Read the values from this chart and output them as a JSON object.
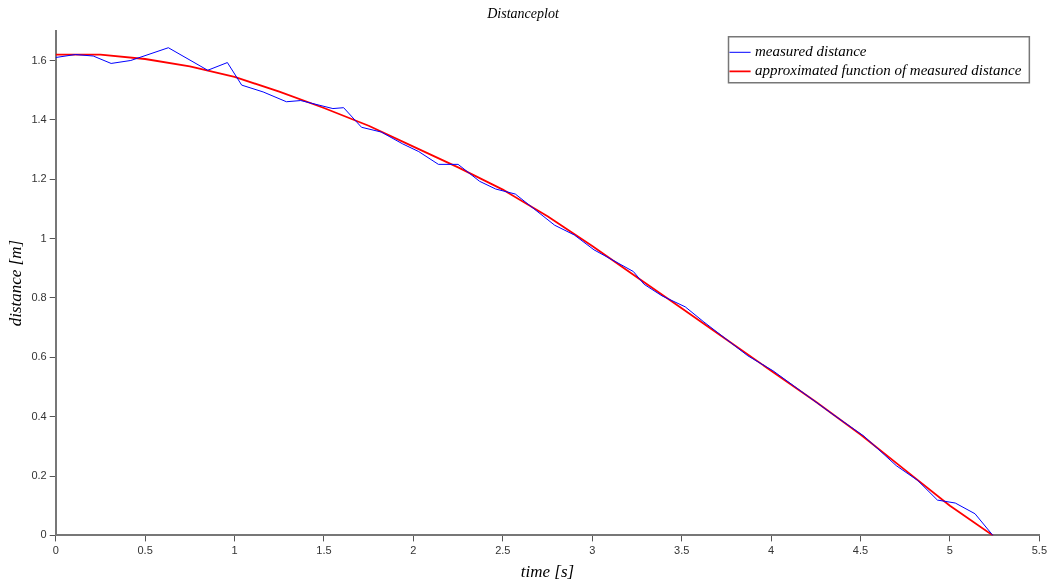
{
  "chart_data": {
    "type": "line",
    "title": "Distanceplot",
    "xlabel": "time [s]",
    "ylabel": "distance [m]",
    "xlim": [
      0,
      5.5
    ],
    "xticks": [
      0,
      0.5,
      1,
      1.5,
      2,
      2.5,
      3,
      3.5,
      4,
      4.5,
      5,
      5.5
    ],
    "ylim": [
      0,
      1.7
    ],
    "yticks": [
      0,
      0.2,
      0.4,
      0.6,
      0.8,
      1,
      1.2,
      1.4,
      1.6
    ],
    "grid": false,
    "legend": "top right",
    "marker": "none",
    "line_style": "solid",
    "series": [
      {
        "name": "measured distance",
        "color": "#0000ff",
        "x": [
          0,
          0.11,
          0.21,
          0.31,
          0.42,
          0.63,
          0.85,
          0.96,
          1.04,
          1.16,
          1.29,
          1.37,
          1.55,
          1.61,
          1.71,
          1.82,
          1.94,
          2.03,
          2.14,
          2.25,
          2.37,
          2.46,
          2.57,
          2.79,
          2.9,
          3.01,
          3.11,
          3.23,
          3.29,
          3.39,
          3.52,
          3.62,
          3.87,
          4.01,
          4.34,
          4.52,
          4.7,
          4.82,
          4.93,
          5.03,
          5.14,
          5.24
        ],
        "values": [
          1.61,
          1.62,
          1.615,
          1.59,
          1.6,
          1.643,
          1.567,
          1.593,
          1.517,
          1.494,
          1.461,
          1.465,
          1.438,
          1.441,
          1.375,
          1.359,
          1.319,
          1.293,
          1.25,
          1.25,
          1.193,
          1.167,
          1.15,
          1.045,
          1.012,
          0.962,
          0.929,
          0.889,
          0.846,
          0.807,
          0.77,
          0.721,
          0.605,
          0.555,
          0.41,
          0.334,
          0.235,
          0.185,
          0.119,
          0.109,
          0.073,
          0
        ]
      },
      {
        "name": "approximated function of measured distance",
        "color": "#ff0000",
        "x": [
          0,
          0.25,
          0.5,
          0.75,
          1,
          1.25,
          1.5,
          1.75,
          2,
          2.25,
          2.5,
          2.75,
          3,
          3.25,
          3.5,
          3.75,
          4,
          4.25,
          4.5,
          4.75,
          5,
          5.24
        ],
        "values": [
          1.62,
          1.62,
          1.605,
          1.58,
          1.545,
          1.495,
          1.44,
          1.38,
          1.31,
          1.24,
          1.165,
          1.075,
          0.975,
          0.87,
          0.765,
          0.66,
          0.555,
          0.45,
          0.34,
          0.22,
          0.1,
          0
        ]
      }
    ]
  }
}
